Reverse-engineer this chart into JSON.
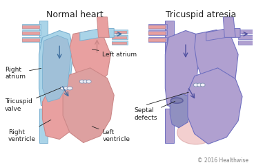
{
  "title_left": "Normal heart",
  "title_right": "Tricuspid atresia",
  "copyright": "© 2016 Healthwise",
  "bg_color": "#ffffff",
  "label_right_atrium": "Right\natrium",
  "label_left_atrium": "Left atrium",
  "label_tricuspid_valve": "Tricuspid\nvalve",
  "label_right_ventricle": "Right\nventricle",
  "label_left_ventricle": "Left\nventricle",
  "label_septal_defects": "Septal\ndefects",
  "pink_fill": "#e8a0a0",
  "pink_fill2": "#dda0a0",
  "blue_fill": "#aad4e8",
  "blue_fill2": "#a0c0d8",
  "purple_fill": "#b0a0d0",
  "purple_fill2": "#9090c0",
  "vessel_blue": "#7ab0d0",
  "vessel_pink": "#cc8888",
  "arrow_color": "#4070a0",
  "line_color": "#404040",
  "title_fontsize": 9,
  "label_fontsize": 6.5,
  "copyright_fontsize": 5.5
}
